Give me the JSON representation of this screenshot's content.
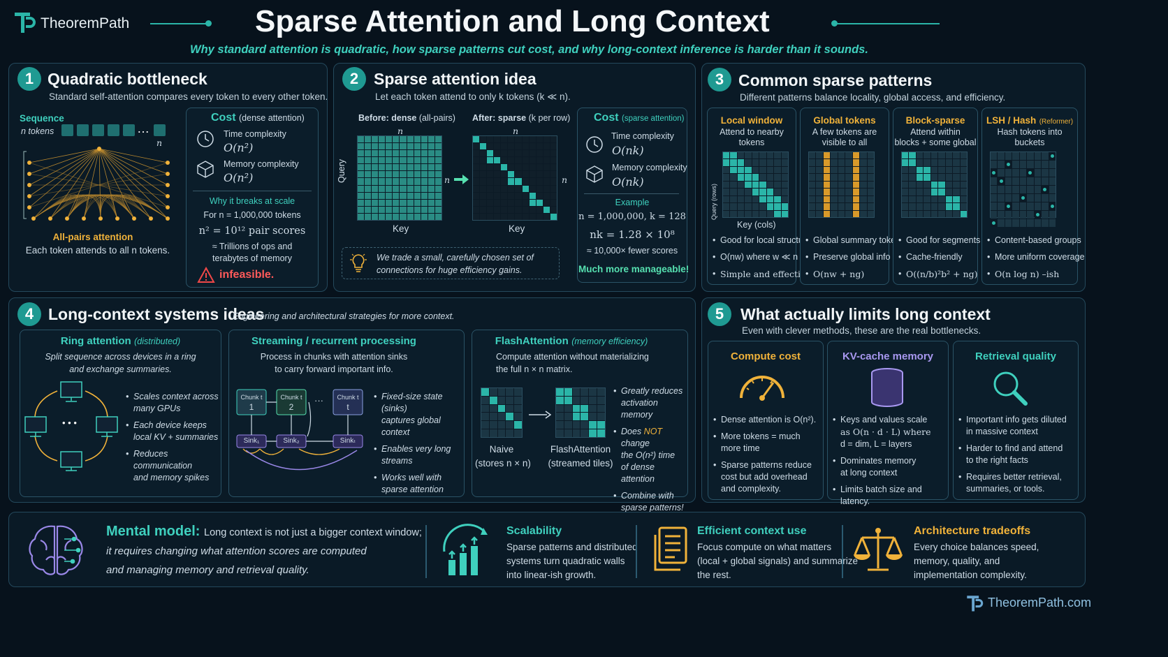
{
  "brand": {
    "name": "TheoremPath",
    "footer": "TheoremPath.com"
  },
  "title": "Sparse Attention and Long Context",
  "subtitle": "Why standard attention is quadratic, how sparse patterns cut cost, and why long-context inference is harder than it sounds.",
  "colors": {
    "teal": "#1f9a92",
    "gold": "#f0b23a",
    "mint": "#56e0b0",
    "panel": "#0a1a26",
    "bg": "#07121c"
  },
  "s1": {
    "num": "1",
    "title": "Quadratic bottleneck",
    "desc": "Standard self-attention compares every token to every other token.",
    "seq_label": "Sequence",
    "tokens_label": "n tokens",
    "n": "n",
    "dots": "…",
    "allpairs": "All-pairs attention",
    "allpairs_desc": "Each token attends to all n tokens.",
    "cost": {
      "title": "Cost",
      "title_paren": "(dense attention)",
      "time_label": "Time complexity",
      "time": "O(n²)",
      "mem_label": "Memory complexity",
      "mem": "O(n²)",
      "why": "Why it breaks at scale",
      "for_n": "For n = 1,000,000 tokens",
      "pairs": "n² = 10¹² pair scores",
      "tril1": "≈ Trillions of ops and",
      "tril2": "terabytes of memory",
      "infeasible": "infeasible."
    }
  },
  "s2": {
    "num": "2",
    "title": "Sparse attention idea",
    "desc": "Let each token attend to only k tokens (k ≪ n).",
    "before": "Before: dense",
    "before_paren": "(all-pairs)",
    "after": "After: sparse",
    "after_paren": "(k per row)",
    "n": "n",
    "query": "Query",
    "key": "Key",
    "tip1": "We trade a small, carefully chosen set of",
    "tip2": "connections for huge efficiency gains.",
    "cost": {
      "title": "Cost",
      "title_paren": "(sparse attention)",
      "time_label": "Time complexity",
      "time": "O(nk)",
      "mem_label": "Memory complexity",
      "mem": "O(nk)",
      "example": "Example",
      "ex1": "n = 1,000,000,  k = 128",
      "ex2": "nk = 1.28 × 10⁸",
      "ex3": "≈ 10,000× fewer scores",
      "manageable": "Much more manageable!"
    }
  },
  "s3": {
    "num": "3",
    "title": "Common sparse patterns",
    "desc": "Different patterns balance locality, global access, and efficiency.",
    "patterns": [
      {
        "title": "Local window",
        "title_paren": "",
        "desc1": "Attend to nearby",
        "desc2": "tokens",
        "b1": "Good for local structure",
        "b2": "O(nw) where w ≪ n",
        "b3": "Simple and effective"
      },
      {
        "title": "Global tokens",
        "title_paren": "",
        "desc1": "A few tokens are",
        "desc2": "visible to all",
        "b1": "Global summary tokens",
        "b2": "Preserve global info",
        "b3": "O(nw + ng)"
      },
      {
        "title": "Block-sparse",
        "title_paren": "",
        "desc1": "Attend within",
        "desc2": "blocks + some global",
        "b1": "Good for segments",
        "b2": "Cache-friendly",
        "b3": "O((n/b)²b² + ng)"
      },
      {
        "title": "LSH / Hash",
        "title_paren": "(Reformer)",
        "desc1": "Hash tokens into",
        "desc2": "buckets",
        "b1": "Content-based groups",
        "b2": "More uniform coverage",
        "b3": "O(n log n) –ish"
      }
    ],
    "query_rows": "Query (rows)",
    "key_cols": "Key (cols)"
  },
  "s4": {
    "num": "4",
    "title": "Long-context systems ideas",
    "desc": "Engineering and architectural strategies for more context.",
    "ring": {
      "title": "Ring attention",
      "paren": "(distributed)",
      "d1": "Split sequence across devices in a ring",
      "d2": "and exchange summaries.",
      "b1a": "Scales context across",
      "b1b": "many GPUs",
      "b2a": "Each device keeps",
      "b2b": "local KV + summaries",
      "b3a": "Reduces communication",
      "b3b": "and memory spikes",
      "dots": "• • •"
    },
    "stream": {
      "title": "Streaming / recurrent processing",
      "d1": "Process in chunks with attention sinks",
      "d2": "to carry forward important info.",
      "chunk": "Chunk t",
      "c1": "1",
      "c2": "2",
      "c3": "t",
      "sink1": "Sink₁",
      "sink2": "Sink₂",
      "sinkt": "Sinkₜ",
      "dots": "···",
      "b1a": "Fixed-size state (sinks)",
      "b1b": "captures global context",
      "b2a": "Enables very long",
      "b2b": "streams",
      "b3a": "Works well with",
      "b3b": "sparse attention"
    },
    "flash": {
      "title": "FlashAttention",
      "paren": "(memory efficiency)",
      "d1": "Compute attention without materializing",
      "d2": "the full n × n matrix.",
      "naive": "Naive",
      "naive2": "(stores n × n)",
      "fa": "FlashAttention",
      "fa2": "(streamed tiles)",
      "b1a": "Greatly reduces",
      "b1b": "activation memory",
      "b2a": "Does",
      "b2not": "NOT",
      "b2b": "change",
      "b2c": "the O(n²) time",
      "b2d": "of dense attention",
      "b3a": "Combine with",
      "b3b": "sparse patterns!"
    }
  },
  "s5": {
    "num": "5",
    "title": "What actually limits long context",
    "desc": "Even with clever methods, these are the real bottlenecks.",
    "compute": {
      "title": "Compute cost",
      "b1": "Dense attention is O(n²).",
      "b2a": "More tokens = much",
      "b2b": "more time",
      "b3a": "Sparse patterns reduce",
      "b3b": "cost but add overhead",
      "b3c": "and complexity."
    },
    "kv": {
      "title": "KV-cache memory",
      "b1a": "Keys and values scale",
      "b1b": "as O(n · d · L) where",
      "b1c": "d = dim, L = layers",
      "b2a": "Dominates memory",
      "b2b": "at long context",
      "b3a": "Limits batch size and",
      "b3b": "latency."
    },
    "retr": {
      "title": "Retrieval quality",
      "b1a": "Important info gets diluted",
      "b1b": "in massive context",
      "b2a": "Harder to find and attend",
      "b2b": "to the right facts",
      "b3a": "Requires better retrieval,",
      "b3b": "summaries, or tools."
    }
  },
  "bottom": {
    "mm_title": "Mental model:",
    "mm1": "Long context is not just a bigger context window;",
    "mm2": "it requires changing what attention scores are computed",
    "mm3": "and managing memory and retrieval quality.",
    "scal_title": "Scalability",
    "scal1": "Sparse patterns and distributed",
    "scal2": "systems turn quadratic walls",
    "scal3": "into linear-ish growth.",
    "eff_title": "Efficient context use",
    "eff1": "Focus compute on what matters",
    "eff2": "(local + global signals) and summarize",
    "eff3": "the rest.",
    "arch_title": "Architecture tradeoffs",
    "arch1": "Every choice balances speed,",
    "arch2": "memory, quality, and",
    "arch3": "implementation complexity."
  }
}
